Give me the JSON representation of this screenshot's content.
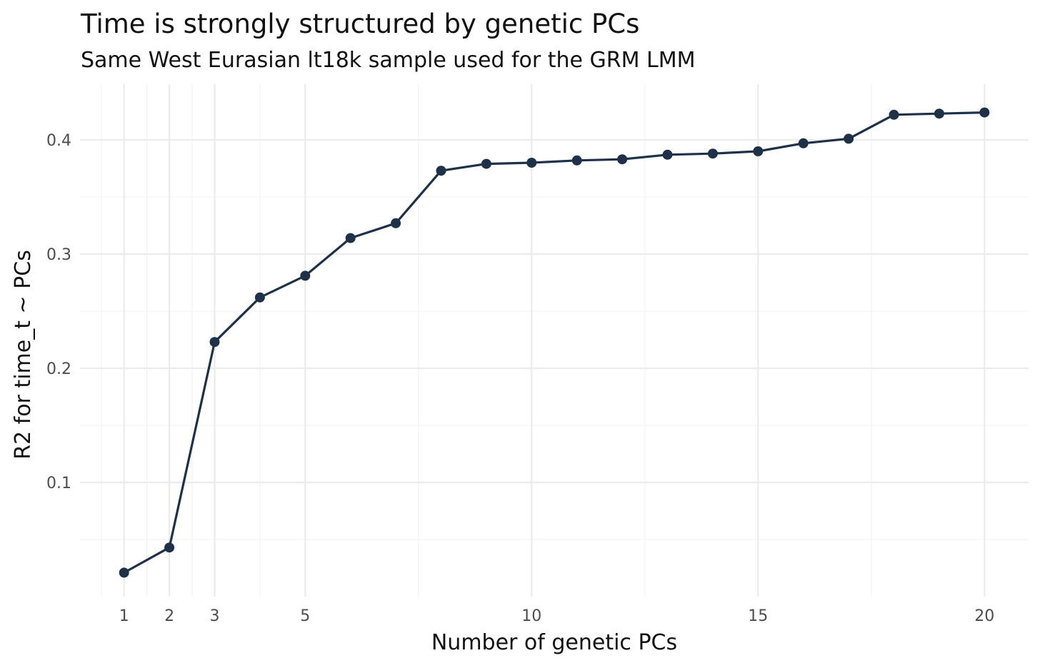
{
  "chart_data": {
    "type": "line",
    "title": "Time is strongly structured by genetic PCs",
    "subtitle": "Same West Eurasian lt18k sample used for the GRM LMM",
    "xlabel": "Number of genetic PCs",
    "ylabel": "R2 for time_t ~ PCs",
    "x_ticks": [
      1,
      2,
      3,
      5,
      10,
      15,
      20
    ],
    "y_ticks": [
      0.1,
      0.2,
      0.3,
      0.4
    ],
    "y_tick_labels": [
      "0.1",
      "0.2",
      "0.3",
      "0.4"
    ],
    "xlim": [
      0.5,
      20.5
    ],
    "ylim": [
      0.0,
      0.445
    ],
    "grid": true,
    "series": [
      {
        "name": "R2",
        "color": "#1f3148",
        "x": [
          1,
          2,
          3,
          4,
          5,
          6,
          7,
          8,
          9,
          10,
          11,
          12,
          13,
          14,
          15,
          16,
          17,
          18,
          19,
          20
        ],
        "y": [
          0.021,
          0.043,
          0.223,
          0.262,
          0.281,
          0.314,
          0.327,
          0.373,
          0.379,
          0.38,
          0.382,
          0.383,
          0.387,
          0.388,
          0.39,
          0.397,
          0.401,
          0.422,
          0.423,
          0.424
        ]
      }
    ]
  }
}
